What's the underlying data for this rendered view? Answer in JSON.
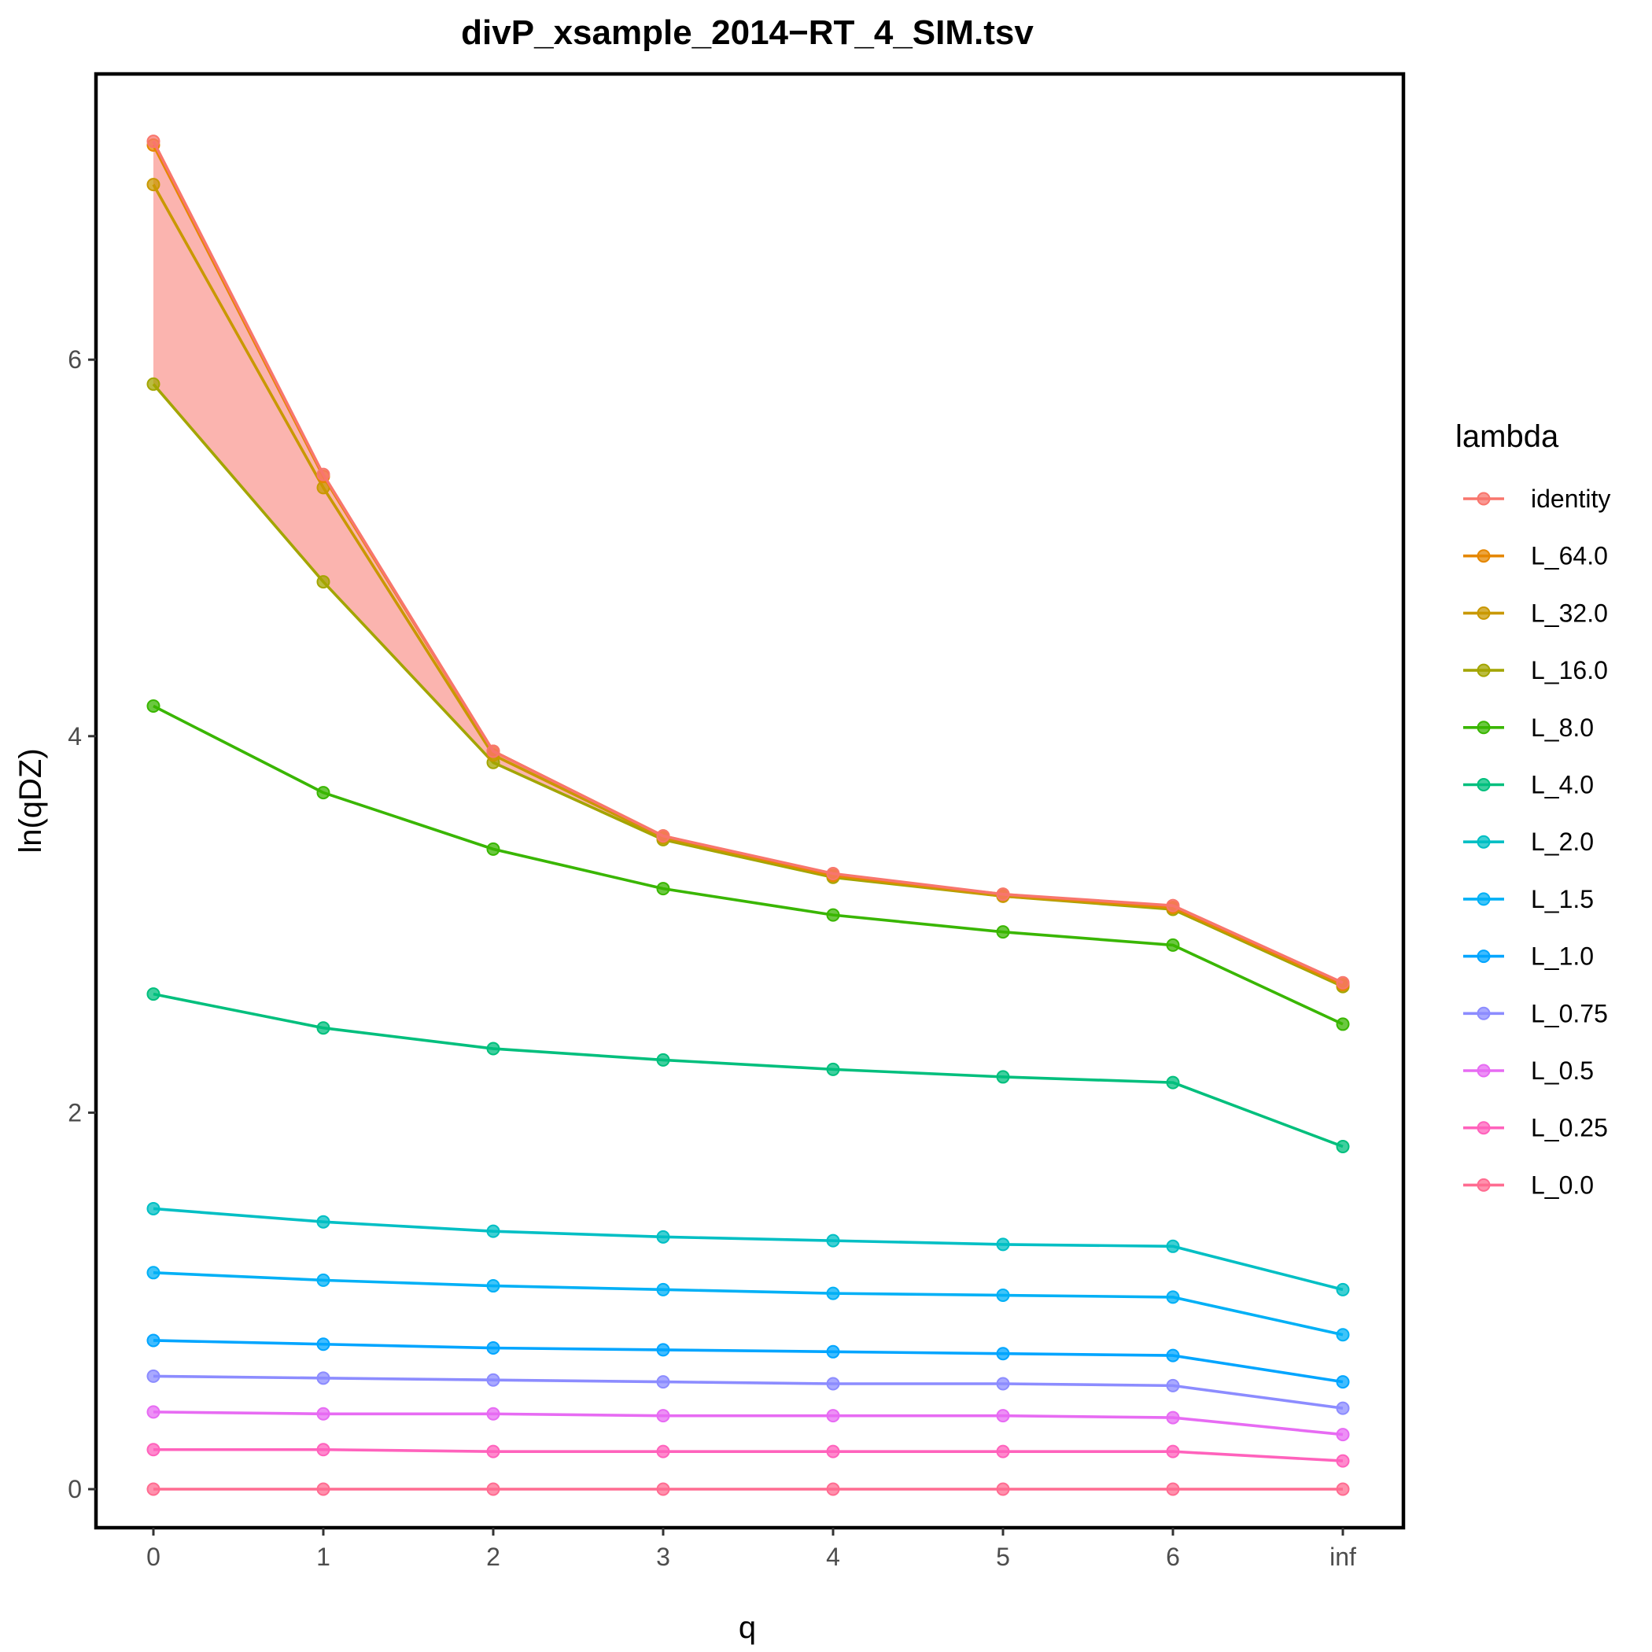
{
  "chart_data": {
    "type": "line",
    "title": "divP_xsample_2014−RT_4_SIM.tsv",
    "xlabel": "q",
    "ylabel": "ln(qDZ)",
    "categories": [
      "0",
      "1",
      "2",
      "3",
      "4",
      "5",
      "6",
      "inf"
    ],
    "yticks": [
      "0",
      "2",
      "4",
      "6"
    ],
    "ylim": [
      -0.32,
      7.5
    ],
    "grid": false,
    "legend_title": "lambda",
    "legend_position": "right",
    "ribbon": {
      "color": "#F8766D",
      "lower": [
        5.87,
        4.82,
        3.86,
        3.45,
        3.25,
        3.15,
        3.09,
        2.67
      ],
      "upper": [
        7.16,
        5.39,
        3.92,
        3.47,
        3.27,
        3.16,
        3.1,
        2.69
      ]
    },
    "series": [
      {
        "name": "identity",
        "color": "#F8766D",
        "values": [
          7.16,
          5.39,
          3.92,
          3.47,
          3.27,
          3.16,
          3.1,
          2.69
        ]
      },
      {
        "name": "L_64.0",
        "color": "#E58700",
        "values": [
          7.14,
          5.38,
          3.92,
          3.47,
          3.26,
          3.16,
          3.09,
          2.68
        ]
      },
      {
        "name": "L_32.0",
        "color": "#C99800",
        "values": [
          6.93,
          5.32,
          3.9,
          3.46,
          3.26,
          3.15,
          3.09,
          2.68
        ]
      },
      {
        "name": "L_16.0",
        "color": "#A3A500",
        "values": [
          5.87,
          4.82,
          3.86,
          3.45,
          3.25,
          3.15,
          3.08,
          2.67
        ]
      },
      {
        "name": "L_8.0",
        "color": "#39B600",
        "values": [
          4.16,
          3.7,
          3.4,
          3.19,
          3.05,
          2.96,
          2.89,
          2.47
        ]
      },
      {
        "name": "L_4.0",
        "color": "#00BF7D",
        "values": [
          2.63,
          2.45,
          2.34,
          2.28,
          2.23,
          2.19,
          2.16,
          1.82
        ]
      },
      {
        "name": "L_2.0",
        "color": "#00BFC4",
        "values": [
          1.49,
          1.42,
          1.37,
          1.34,
          1.32,
          1.3,
          1.29,
          1.06
        ]
      },
      {
        "name": "L_1.5",
        "color": "#00B0F6",
        "values": [
          1.15,
          1.11,
          1.08,
          1.06,
          1.04,
          1.03,
          1.02,
          0.82
        ]
      },
      {
        "name": "L_1.0",
        "color": "#00A5FF",
        "values": [
          0.79,
          0.77,
          0.75,
          0.74,
          0.73,
          0.72,
          0.71,
          0.57
        ]
      },
      {
        "name": "L_0.75",
        "color": "#8C8CFF",
        "values": [
          0.6,
          0.59,
          0.58,
          0.57,
          0.56,
          0.56,
          0.55,
          0.43
        ]
      },
      {
        "name": "L_0.5",
        "color": "#E76BF3",
        "values": [
          0.41,
          0.4,
          0.4,
          0.39,
          0.39,
          0.39,
          0.38,
          0.29
        ]
      },
      {
        "name": "L_0.25",
        "color": "#FF62BC",
        "values": [
          0.21,
          0.21,
          0.2,
          0.2,
          0.2,
          0.2,
          0.2,
          0.15
        ]
      },
      {
        "name": "L_0.0",
        "color": "#FF6C91",
        "values": [
          0.0,
          0.0,
          0.0,
          0.0,
          0.0,
          0.0,
          0.0,
          0.0
        ]
      }
    ]
  }
}
